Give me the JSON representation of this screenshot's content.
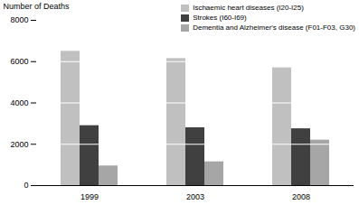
{
  "chart_data": {
    "type": "bar",
    "y_label": "Number of Deaths",
    "categories": [
      "1999",
      "2003",
      "2008"
    ],
    "series": [
      {
        "name": "Ischaemic heart diseases (I20-I25)",
        "color": "#c0c0c0",
        "values": [
          6500,
          6150,
          5700
        ]
      },
      {
        "name": "Strokes (I60-I69)",
        "color": "#404040",
        "values": [
          2900,
          2800,
          2750
        ]
      },
      {
        "name": "Dementia and Alzheimer's disease (F01-F03, G30)",
        "color": "#a6a6a6",
        "values": [
          950,
          1150,
          2200
        ]
      }
    ],
    "ylim": [
      0,
      8000
    ],
    "yticks": [
      0,
      2000,
      4000,
      6000,
      8000
    ],
    "grid": true,
    "legend": "top-right"
  }
}
